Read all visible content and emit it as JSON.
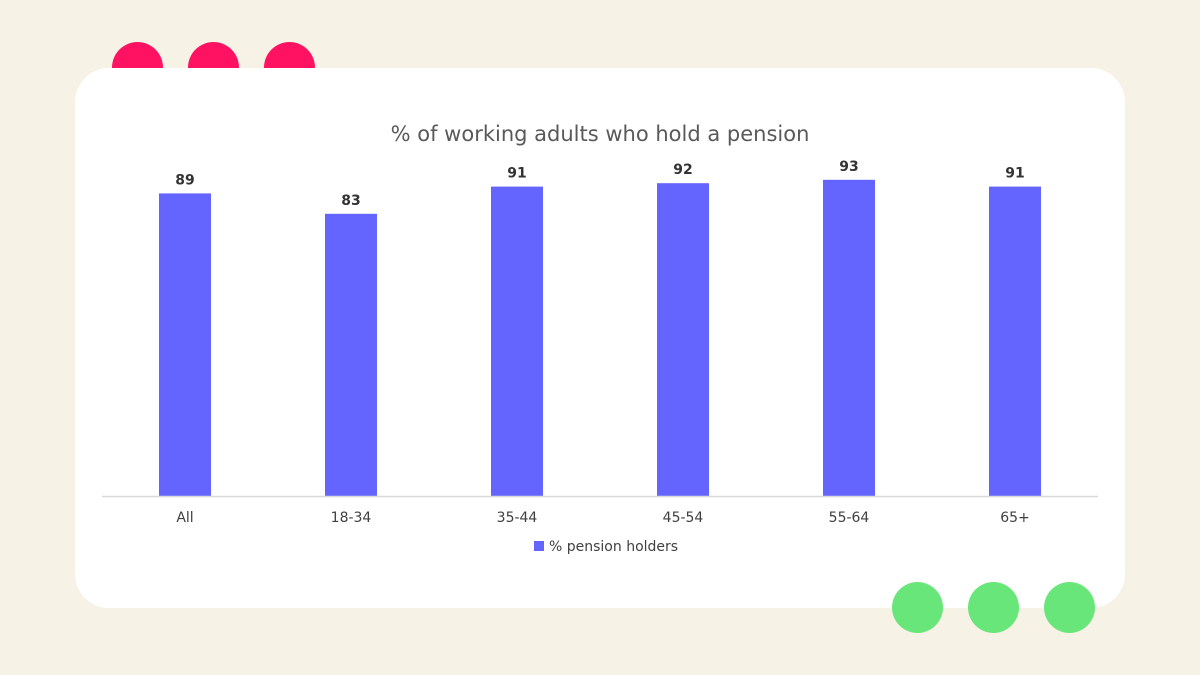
{
  "colors": {
    "background": "#f6f3e6",
    "card": "#ffffff",
    "accent_red": "#ff1261",
    "accent_green": "#69e67a",
    "bar": "#6464ff",
    "axis": "#d9d9d9"
  },
  "chart_data": {
    "type": "bar",
    "title": "% of working adults who hold a pension",
    "categories": [
      "All",
      "18-34",
      "35-44",
      "45-54",
      "55-64",
      "65+"
    ],
    "series": [
      {
        "name": "% pension holders",
        "values": [
          89,
          83,
          91,
          92,
          93,
          91
        ],
        "color": "#6464ff"
      }
    ],
    "ylim": [
      0,
      100
    ],
    "grid": false,
    "data_labels": true,
    "legend": "bottom"
  }
}
